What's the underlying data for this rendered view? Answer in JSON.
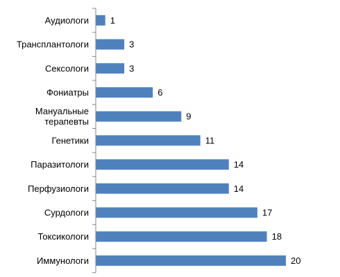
{
  "chart_data": {
    "type": "bar",
    "orientation": "horizontal",
    "categories": [
      [
        "Аудиологи"
      ],
      [
        "Трансплантологи"
      ],
      [
        "Сексологи"
      ],
      [
        "Фониатры"
      ],
      [
        "Мануальные",
        "терапевты"
      ],
      [
        "Генетики"
      ],
      [
        "Паразитологи"
      ],
      [
        "Перфузиологи"
      ],
      [
        "Сурдологи"
      ],
      [
        "Токсикологи"
      ],
      [
        "Иммунологи"
      ]
    ],
    "values": [
      1,
      3,
      3,
      6,
      9,
      11,
      14,
      14,
      17,
      18,
      20
    ],
    "bar_color": "#4F81BD",
    "axis_color": "#868686",
    "xlim": [
      0,
      20
    ],
    "grid": false,
    "legend": "none",
    "data_labels": true
  }
}
